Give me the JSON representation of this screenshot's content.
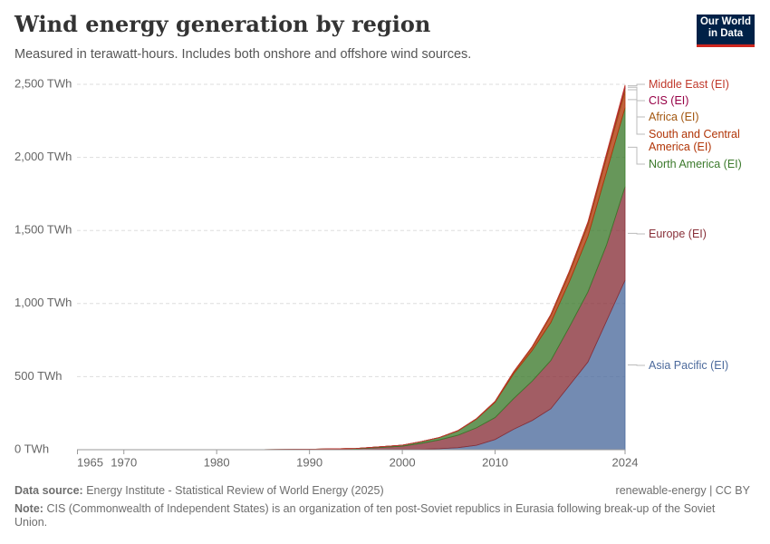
{
  "chart_data": {
    "type": "stacked-area",
    "title": "Wind energy generation by region",
    "subtitle": "Measured in terawatt-hours. Includes both onshore and offshore wind sources.",
    "logo": "Our World in Data",
    "source": "Energy Institute - Statistical Review of World Energy (2025)",
    "source_label": "Data source:",
    "license": "renewable-energy | CC BY",
    "note_label": "Note:",
    "note": "CIS (Commonwealth of Independent States) is an organization of ten post-Soviet republics in Eurasia following break-up of the Soviet Union.",
    "x": [
      1965,
      1985,
      1990,
      1995,
      2000,
      2002,
      2004,
      2006,
      2008,
      2010,
      2012,
      2014,
      2016,
      2018,
      2020,
      2022,
      2024
    ],
    "xlim": [
      1965,
      2024
    ],
    "xticks": [
      1965,
      1970,
      1980,
      1990,
      2000,
      2010,
      2024
    ],
    "ylim": [
      0,
      2500
    ],
    "yticks": [
      {
        "value": 0,
        "label": "0 TWh"
      },
      {
        "value": 500,
        "label": "500 TWh"
      },
      {
        "value": 1000,
        "label": "1,000 TWh"
      },
      {
        "value": 1500,
        "label": "1,500 TWh"
      },
      {
        "value": 2000,
        "label": "2,000 TWh"
      },
      {
        "value": 2500,
        "label": "2,500 TWh"
      }
    ],
    "grid": true,
    "series": [
      {
        "name": "Asia Pacific (EI)",
        "color": "#4c6a9c",
        "values": [
          0,
          0,
          0.1,
          0.5,
          2,
          3,
          7,
          14,
          30,
          70,
          140,
          200,
          280,
          440,
          600,
          880,
          1160
        ]
      },
      {
        "name": "Europe (EI)",
        "color": "#883039",
        "values": [
          0,
          0,
          1,
          5,
          22,
          40,
          60,
          85,
          120,
          150,
          210,
          270,
          330,
          400,
          480,
          520,
          640
        ]
      },
      {
        "name": "North America (EI)",
        "color": "#3c7a2c",
        "values": [
          0,
          0.3,
          2,
          3,
          7,
          12,
          16,
          30,
          60,
          105,
          170,
          210,
          260,
          310,
          380,
          500,
          540
        ]
      },
      {
        "name": "South and Central America (EI)",
        "color": "#b13507",
        "values": [
          0,
          0,
          0,
          0,
          0,
          0,
          0.5,
          1,
          2,
          4,
          10,
          20,
          45,
          55,
          75,
          95,
          110
        ]
      },
      {
        "name": "Africa (EI)",
        "color": "#a2560f",
        "values": [
          0,
          0,
          0,
          0,
          0,
          0,
          0.5,
          1,
          1,
          2,
          4,
          6,
          10,
          15,
          18,
          20,
          25
        ]
      },
      {
        "name": "CIS (EI)",
        "color": "#970046",
        "values": [
          0,
          0,
          0,
          0,
          0,
          0,
          0,
          0,
          0,
          0,
          0,
          0,
          0,
          1,
          3,
          6,
          10
        ]
      },
      {
        "name": "Middle East (EI)",
        "color": "#c0392b",
        "values": [
          0,
          0,
          0,
          0,
          0,
          0,
          0,
          0,
          0,
          0,
          0,
          0,
          0,
          1,
          3,
          5,
          10
        ]
      }
    ]
  }
}
